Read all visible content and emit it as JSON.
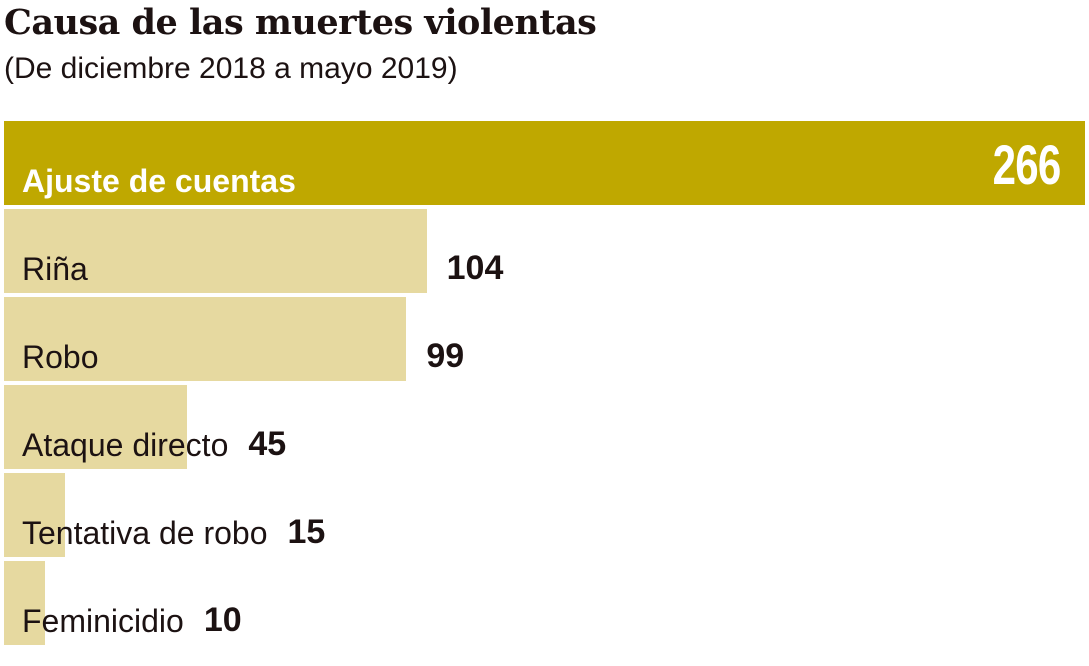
{
  "chart_data": {
    "type": "bar",
    "orientation": "horizontal",
    "title": "Causa de las muertes violentas",
    "subtitle": "(De diciembre 2018 a mayo 2019)",
    "categories": [
      "Ajuste de cuentas",
      "Riña",
      "Robo",
      "Ataque directo",
      "Tentativa de robo",
      "Feminicidio"
    ],
    "values": [
      266,
      104,
      99,
      45,
      15,
      10
    ],
    "xlim": [
      0,
      266
    ],
    "grid": false,
    "colors": {
      "highlight": "#bfa800",
      "bar": "#e6d9a0",
      "text": "#1c1212"
    }
  }
}
